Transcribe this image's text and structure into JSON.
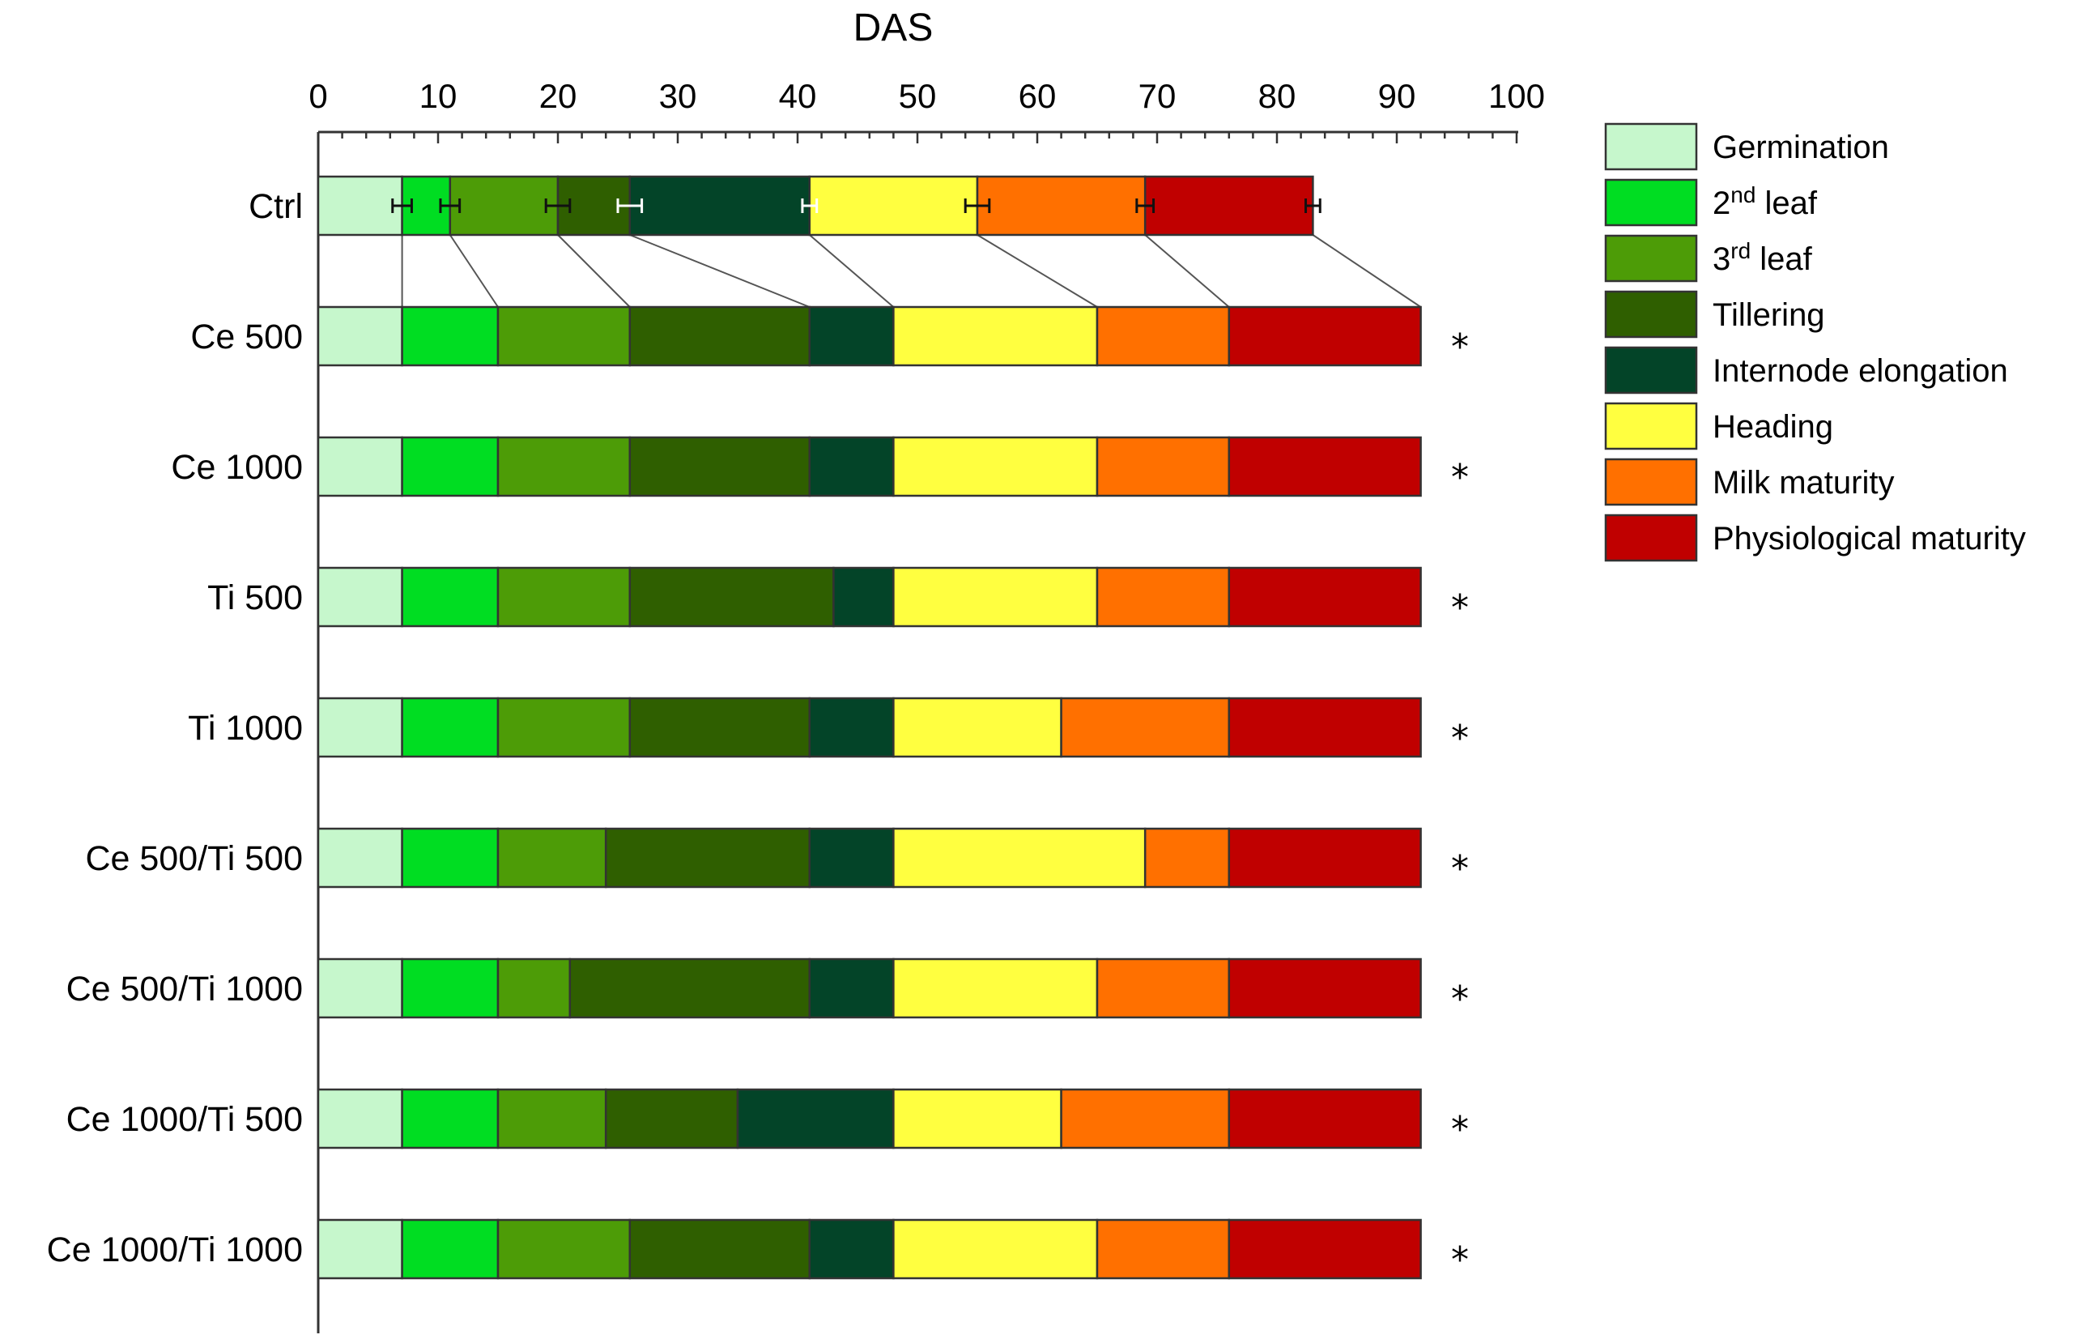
{
  "chart_data": {
    "type": "bar",
    "orientation": "horizontal-stacked",
    "xlabel": "DAS",
    "xlim": [
      0,
      100
    ],
    "xticks": [
      0,
      10,
      20,
      30,
      40,
      50,
      60,
      70,
      80,
      90,
      100
    ],
    "stages": [
      {
        "label": "Germination",
        "color": "#c6f7cc"
      },
      {
        "label": "2nd leaf",
        "label_base": "2",
        "label_sup": "nd",
        "label_rest": " leaf",
        "color": "#00dd22"
      },
      {
        "label": "3rd leaf",
        "label_base": "3",
        "label_sup": "rd",
        "label_rest": " leaf",
        "color": "#4d9c07"
      },
      {
        "label": "Tillering",
        "color": "#2f5f00"
      },
      {
        "label": "Internode elongation",
        "color": "#034428"
      },
      {
        "label": "Heading",
        "color": "#ffff40"
      },
      {
        "label": "Milk maturity",
        "color": "#ff7000"
      },
      {
        "label": "Physiological maturity",
        "color": "#c00000"
      }
    ],
    "rows": [
      {
        "label": "Ctrl",
        "boundaries": [
          0,
          7,
          11,
          20,
          26,
          41,
          55,
          69,
          83
        ],
        "error_bars": [
          0.8,
          0.8,
          1,
          1,
          0.6,
          1,
          0.7,
          0.6
        ],
        "significant": ""
      },
      {
        "label": "Ce 500",
        "boundaries": [
          0,
          7,
          15,
          26,
          41,
          48,
          65,
          76,
          92
        ],
        "significant": "*"
      },
      {
        "label": "Ce 1000",
        "boundaries": [
          0,
          7,
          15,
          26,
          41,
          48,
          65,
          76,
          92
        ],
        "significant": "*"
      },
      {
        "label": "Ti 500",
        "boundaries": [
          0,
          7,
          15,
          26,
          43,
          48,
          65,
          76,
          92
        ],
        "significant": "*"
      },
      {
        "label": "Ti 1000",
        "boundaries": [
          0,
          7,
          15,
          26,
          41,
          48,
          62,
          76,
          92
        ],
        "significant": "*"
      },
      {
        "label": "Ce 500/Ti 500",
        "boundaries": [
          0,
          7,
          15,
          24,
          41,
          48,
          69,
          76,
          92
        ],
        "significant": "*"
      },
      {
        "label": "Ce 500/Ti 1000",
        "boundaries": [
          0,
          7,
          15,
          21,
          41,
          48,
          65,
          76,
          92
        ],
        "significant": "*"
      },
      {
        "label": "Ce 1000/Ti 500",
        "boundaries": [
          0,
          7,
          15,
          24,
          35,
          48,
          62,
          76,
          92
        ],
        "significant": "*"
      },
      {
        "label": "Ce 1000/Ti 1000",
        "boundaries": [
          0,
          7,
          15,
          26,
          41,
          48,
          65,
          76,
          92
        ],
        "significant": "*"
      }
    ]
  }
}
